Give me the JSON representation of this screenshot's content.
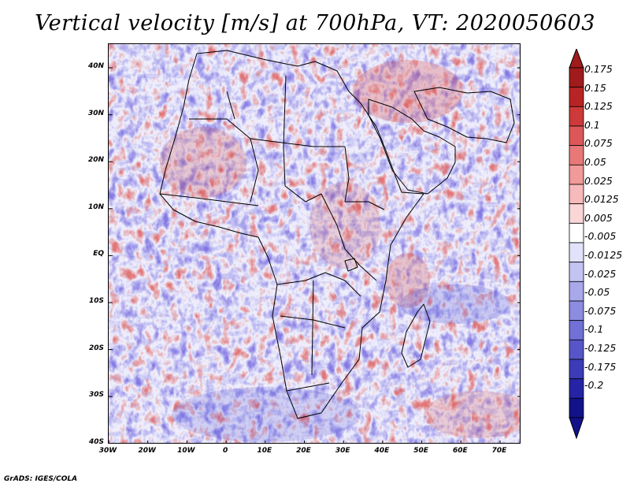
{
  "title": "Vertical velocity [m/s] at 700hPa, VT: 2020050603",
  "credit": "GrADS: IGES/COLA",
  "lat_labels": [
    "40N",
    "30N",
    "20N",
    "10N",
    "EQ",
    "10S",
    "20S",
    "30S",
    "40S"
  ],
  "lon_labels": [
    "30W",
    "20W",
    "10W",
    "0",
    "10E",
    "20E",
    "30E",
    "40E",
    "50E",
    "60E",
    "70E"
  ],
  "colorbar": {
    "labels": [
      "0.175",
      "0.15",
      "0.125",
      "0.1",
      "0.075",
      "0.05",
      "0.025",
      "0.0125",
      "0.005",
      "-0.005",
      "-0.0125",
      "-0.025",
      "-0.05",
      "-0.075",
      "-0.1",
      "-0.125",
      "-0.175",
      "-0.2"
    ],
    "colors": [
      "#a01b1b",
      "#b82424",
      "#cc3a3a",
      "#dc5858",
      "#e87878",
      "#f09a9a",
      "#f6baba",
      "#fad6d6",
      "#ffffff",
      "#e2e2fa",
      "#c4c4f2",
      "#a8a8ea",
      "#8c8ce0",
      "#7070d6",
      "#5656c8",
      "#3c3cb8",
      "#2424a4",
      "#12128a"
    ]
  },
  "map": {
    "lon_range": [
      -30,
      76
    ],
    "lat_range": [
      -40,
      45
    ]
  }
}
